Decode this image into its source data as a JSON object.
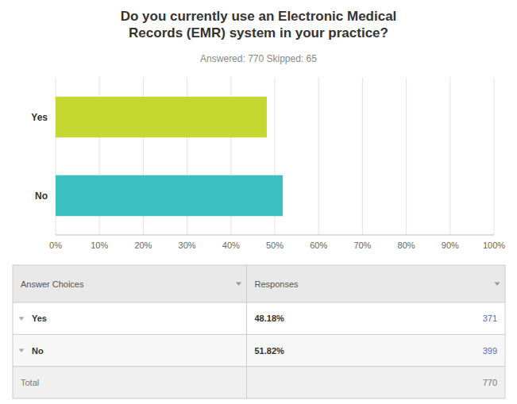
{
  "chart_data": {
    "type": "bar",
    "orientation": "horizontal",
    "title": "Do you currently use an Electronic Medical\nRecords (EMR) system in your practice?",
    "subtitle": "Answered: 770    Skipped: 65",
    "categories": [
      "Yes",
      "No"
    ],
    "values": [
      48.18,
      51.82
    ],
    "colors": [
      "#c5d832",
      "#3bbfbf"
    ],
    "xlim": [
      0,
      100
    ],
    "xticks": [
      {
        "value": 0,
        "label": "0%"
      },
      {
        "value": 10,
        "label": "10%"
      },
      {
        "value": 20,
        "label": "20%"
      },
      {
        "value": 30,
        "label": "30%"
      },
      {
        "value": 40,
        "label": "40%"
      },
      {
        "value": 50,
        "label": "50%"
      },
      {
        "value": 60,
        "label": "60%"
      },
      {
        "value": 70,
        "label": "70%"
      },
      {
        "value": 80,
        "label": "80%"
      },
      {
        "value": 90,
        "label": "90%"
      },
      {
        "value": 100,
        "label": "100%"
      }
    ],
    "grid": true,
    "table": {
      "headers": [
        "Answer Choices",
        "Responses"
      ],
      "rows": [
        {
          "choice": "Yes",
          "percent": "48.18%",
          "count": 371
        },
        {
          "choice": "No",
          "percent": "51.82%",
          "count": 399
        }
      ],
      "total_label": "Total",
      "total_count": 770
    }
  }
}
